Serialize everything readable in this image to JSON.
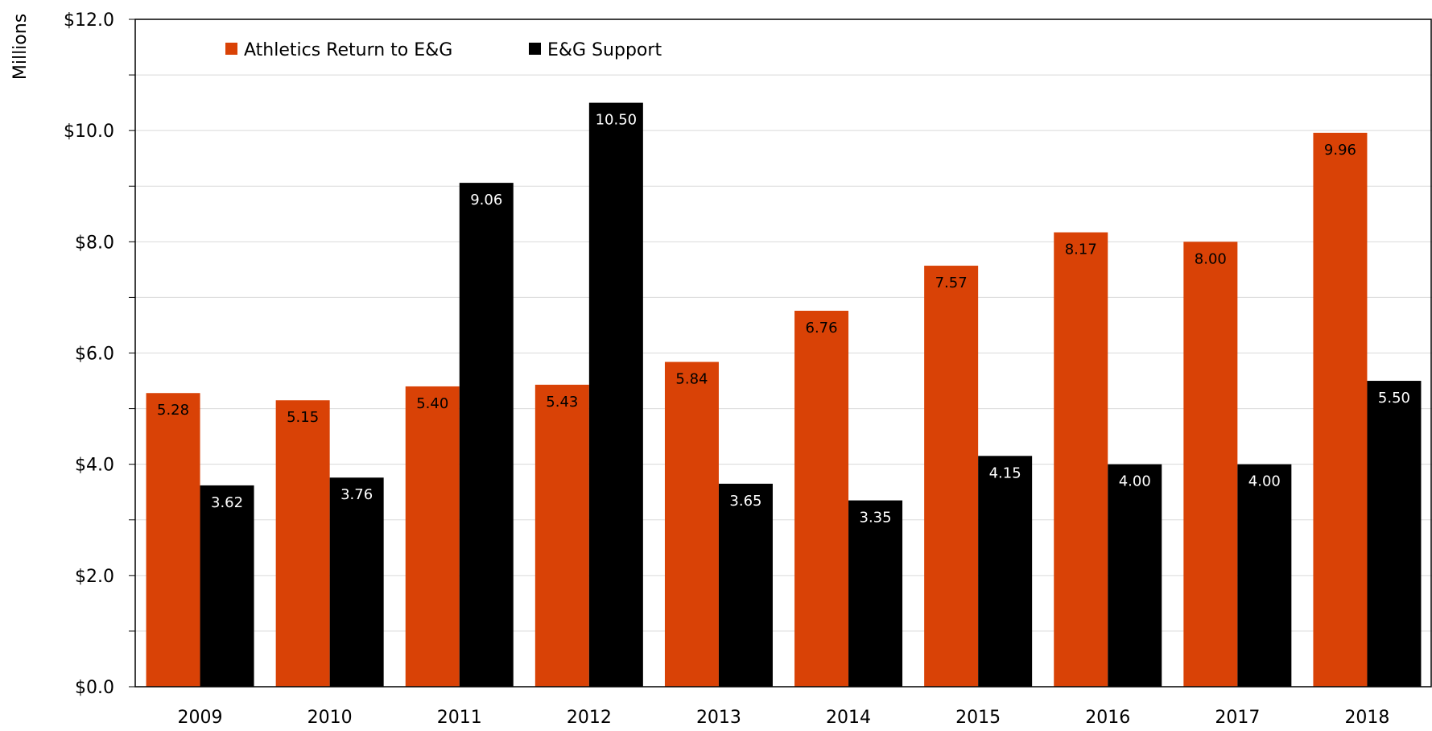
{
  "chart_data": {
    "type": "bar",
    "title": "",
    "xlabel": "",
    "ylabel": "Millions",
    "ylim": [
      0,
      12
    ],
    "y_ticks": [
      "$0.0",
      "$2.0",
      "$4.0",
      "$6.0",
      "$8.0",
      "$10.0",
      "$12.0"
    ],
    "y_tick_values": [
      0,
      2,
      4,
      6,
      8,
      10,
      12
    ],
    "grid": true,
    "legend_position": "top-left",
    "categories": [
      "2009",
      "2010",
      "2011",
      "2012",
      "2013",
      "2014",
      "2015",
      "2016",
      "2017",
      "2018"
    ],
    "series": [
      {
        "name": "Athletics Return to E&G",
        "color": "#D94206",
        "label_color": "#000000",
        "values": [
          5.28,
          5.15,
          5.4,
          5.43,
          5.84,
          6.76,
          7.57,
          8.17,
          8.0,
          9.96
        ],
        "labels": [
          "5.28",
          "5.15",
          "5.40",
          "5.43",
          "5.84",
          "6.76",
          "7.57",
          "8.17",
          "8.00",
          "9.96"
        ]
      },
      {
        "name": "E&G Support",
        "color": "#000000",
        "label_color": "#FFFFFF",
        "values": [
          3.62,
          3.76,
          9.06,
          10.5,
          3.65,
          3.35,
          4.15,
          4.0,
          4.0,
          5.5
        ],
        "labels": [
          "3.62",
          "3.76",
          "9.06",
          "10.50",
          "3.65",
          "3.35",
          "4.15",
          "4.00",
          "4.00",
          "5.50"
        ]
      }
    ]
  }
}
